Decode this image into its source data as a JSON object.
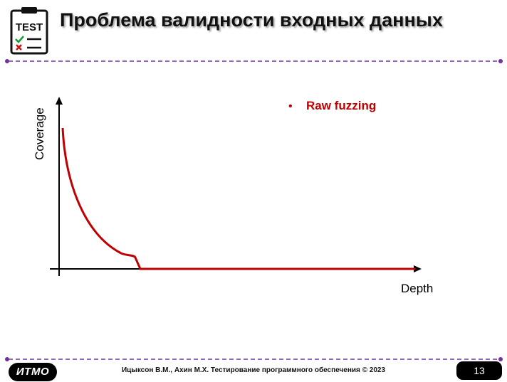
{
  "header": {
    "title": "Проблема валидности входных данных",
    "icon_label": "TEST"
  },
  "diagram": {
    "ylabel": "Coverage",
    "xlabel": "Depth",
    "legend": "Raw fuzzing",
    "legend_bullet": "•",
    "curve_color": "#c00000",
    "axis_color": "#000000"
  },
  "footer": {
    "logo": "ИТМО",
    "citation": "Ицыксон В.М., Ахин М.Х. Тестирование программного обеспечения © 2023",
    "page": "13"
  },
  "colors": {
    "accent_purple": "#7030a0"
  }
}
